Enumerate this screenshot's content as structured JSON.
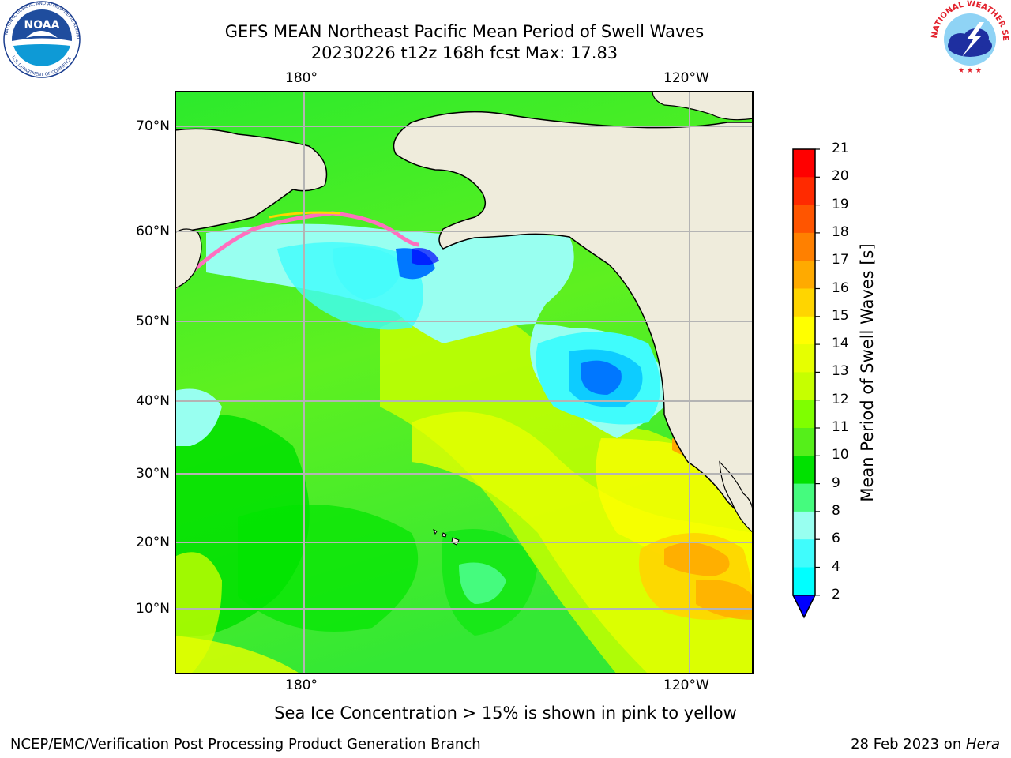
{
  "header": {
    "title_line1": "GEFS MEAN Northeast Pacific Mean Period of Swell Waves",
    "title_line2": "20230226 t12z 168h fcst   Max: 17.83"
  },
  "logos": {
    "noaa_text": "NOAA",
    "noaa_ring": "NATIONAL OCEANIC AND ATMOSPHERIC ADMINISTRATION",
    "noaa_ring_bottom": "U.S. DEPARTMENT OF COMMERCE",
    "nws_ring": "NATIONAL WEATHER SERVICE"
  },
  "map": {
    "lon_labels_top": [
      "180°",
      "120°W"
    ],
    "lon_labels_bottom": [
      "180°",
      "120°W"
    ],
    "lat_labels": [
      "70°N",
      "60°N",
      "50°N",
      "40°N",
      "30°N",
      "20°N",
      "10°N"
    ],
    "land_color": "#efecdc",
    "grid_color": "#b4b4b4"
  },
  "colorbar": {
    "label": "Mean Period of Swell Waves [s]",
    "ticks": [
      "21",
      "20",
      "19",
      "18",
      "17",
      "16",
      "15",
      "14",
      "13",
      "12",
      "11",
      "10",
      "9",
      "8",
      "6",
      "4",
      "2"
    ],
    "colors": [
      "#ff0000",
      "#ff2a00",
      "#ff5500",
      "#ff8000",
      "#ffaa00",
      "#ffd500",
      "#ffff00",
      "#e6ff00",
      "#c6ff00",
      "#7fff00",
      "#55ef1a",
      "#00e100",
      "#45fb7e",
      "#98fff0",
      "#40fcfc",
      "#00ffff",
      "#00bfff",
      "#0077ff"
    ],
    "extend_color": "#0000ff"
  },
  "footer": {
    "note": "Sea Ice Concentration > 15% is shown in pink to yellow",
    "credit": "NCEP/EMC/Verification Post Processing Product Generation Branch",
    "date_prefix": "28 Feb 2023 on ",
    "machine": "Hera"
  }
}
